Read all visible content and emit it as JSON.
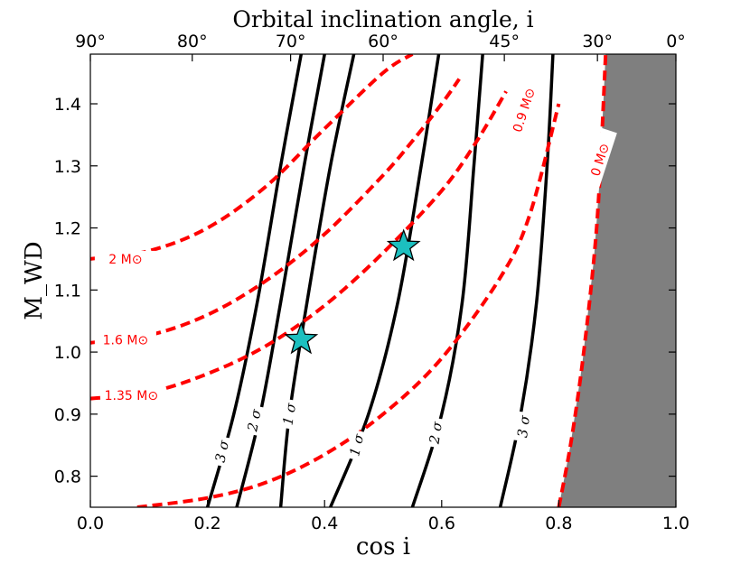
{
  "chart_data": {
    "type": "line",
    "title": "Orbital inclination angle, i",
    "xlabel": "cos i",
    "ylabel": "M_WD",
    "xlim": [
      0.0,
      1.0
    ],
    "ylim": [
      0.75,
      1.48
    ],
    "x_ticks": [
      0.0,
      0.2,
      0.4,
      0.6,
      0.8,
      1.0
    ],
    "x_tick_labels": [
      "0.0",
      "0.2",
      "0.4",
      "0.6",
      "0.8",
      "1.0"
    ],
    "y_ticks": [
      0.8,
      0.9,
      1.0,
      1.1,
      1.2,
      1.3,
      1.4
    ],
    "y_tick_labels": [
      "0.8",
      "0.9",
      "1.0",
      "1.1",
      "1.2",
      "1.3",
      "1.4"
    ],
    "top_ticks": [
      {
        "label": "90°",
        "cos": 0.0
      },
      {
        "label": "80°",
        "cos": 0.174
      },
      {
        "label": "70°",
        "cos": 0.342
      },
      {
        "label": "60°",
        "cos": 0.5
      },
      {
        "label": "45°",
        "cos": 0.707
      },
      {
        "label": "30°",
        "cos": 0.866
      },
      {
        "label": "0°",
        "cos": 1.0
      }
    ],
    "excluded_region_color": "#7f7f7f",
    "mass_color": "#ff0000",
    "sigma_color": "#000000",
    "star_color": "#1cbfbf",
    "mass_series": [
      {
        "name": "2 M_sun",
        "label": "2",
        "x": [
          0.0,
          0.1,
          0.2,
          0.3,
          0.4,
          0.5,
          0.55
        ],
        "y": [
          1.15,
          1.163,
          1.2,
          1.267,
          1.36,
          1.45,
          1.48
        ],
        "label_x": 0.06,
        "label_y": 1.15
      },
      {
        "name": "1.6 M_sun",
        "label": "1.6",
        "x": [
          0.0,
          0.1,
          0.2,
          0.3,
          0.4,
          0.5,
          0.55,
          0.6,
          0.63
        ],
        "y": [
          1.015,
          1.027,
          1.06,
          1.115,
          1.19,
          1.285,
          1.34,
          1.4,
          1.44
        ],
        "label_x": 0.06,
        "label_y": 1.02
      },
      {
        "name": "1.35 M_sun",
        "label": "1.35",
        "x": [
          0.0,
          0.1,
          0.2,
          0.3,
          0.4,
          0.5,
          0.6,
          0.66,
          0.71
        ],
        "y": [
          0.925,
          0.935,
          0.965,
          1.01,
          1.075,
          1.16,
          1.26,
          1.34,
          1.42
        ],
        "label_x": 0.07,
        "label_y": 0.93
      },
      {
        "name": "0.9 M_sun",
        "label": "0.9",
        "x": [
          0.08,
          0.2,
          0.3,
          0.4,
          0.5,
          0.6,
          0.7,
          0.75,
          0.8
        ],
        "y": [
          0.75,
          0.765,
          0.79,
          0.835,
          0.9,
          0.99,
          1.12,
          1.22,
          1.4
        ],
        "label_x": 0.74,
        "label_y": 1.39
      },
      {
        "name": "0 M_sun",
        "label": "0",
        "x": [
          0.8,
          0.82,
          0.84,
          0.86,
          0.87,
          0.88
        ],
        "y": [
          0.75,
          0.85,
          0.98,
          1.15,
          1.28,
          1.48
        ],
        "label_x": 0.87,
        "label_y": 1.31
      }
    ],
    "sigma_series": [
      {
        "name": "3σ left",
        "label": "3 σ",
        "x": [
          0.2,
          0.245,
          0.285,
          0.325,
          0.36
        ],
        "y": [
          0.75,
          0.9,
          1.08,
          1.3,
          1.48
        ],
        "label_x": 0.225,
        "label_y": 0.84
      },
      {
        "name": "2σ left",
        "label": "2 σ",
        "x": [
          0.25,
          0.29,
          0.325,
          0.365,
          0.4
        ],
        "y": [
          0.75,
          0.9,
          1.08,
          1.3,
          1.48
        ],
        "label_x": 0.28,
        "label_y": 0.89
      },
      {
        "name": "1σ left",
        "label": "1 σ",
        "x": [
          0.325,
          0.34,
          0.37,
          0.41,
          0.45
        ],
        "y": [
          0.75,
          0.9,
          1.08,
          1.3,
          1.48
        ],
        "label_x": 0.34,
        "label_y": 0.9
      },
      {
        "name": "1σ right",
        "label": "1 σ",
        "x": [
          0.41,
          0.475,
          0.525,
          0.565,
          0.595
        ],
        "y": [
          0.75,
          0.9,
          1.08,
          1.3,
          1.48
        ],
        "label_x": 0.455,
        "label_y": 0.85
      },
      {
        "name": "2σ right",
        "label": "2 σ",
        "x": [
          0.55,
          0.6,
          0.635,
          0.655,
          0.67
        ],
        "y": [
          0.75,
          0.9,
          1.08,
          1.3,
          1.48
        ],
        "label_x": 0.59,
        "label_y": 0.87
      },
      {
        "name": "3σ right",
        "label": "3 σ",
        "x": [
          0.7,
          0.735,
          0.762,
          0.78,
          0.79
        ],
        "y": [
          0.75,
          0.9,
          1.08,
          1.3,
          1.48
        ],
        "label_x": 0.74,
        "label_y": 0.88
      }
    ],
    "stars": [
      {
        "x": 0.36,
        "y": 1.02
      },
      {
        "x": 0.535,
        "y": 1.17
      }
    ],
    "excluded_region": {
      "x": [
        0.8,
        0.82,
        0.84,
        0.86,
        0.87,
        0.88,
        1.0,
        1.0
      ],
      "y": [
        0.75,
        0.85,
        0.98,
        1.15,
        1.28,
        1.48,
        1.48,
        0.75
      ]
    }
  }
}
